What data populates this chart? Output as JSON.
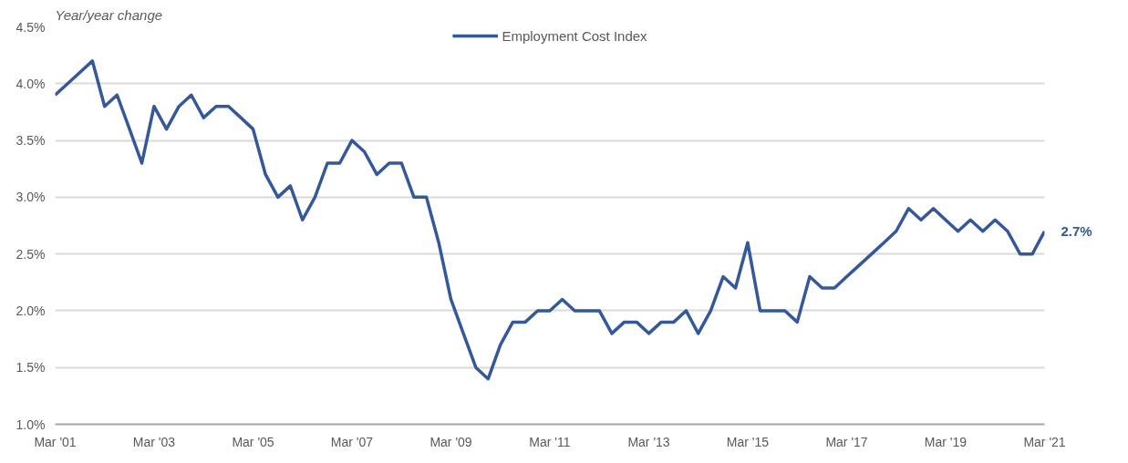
{
  "chart_data": {
    "type": "line",
    "ylabel": "Year/year change",
    "x": [
      "2001-03",
      "2001-06",
      "2001-09",
      "2001-12",
      "2002-03",
      "2002-06",
      "2002-09",
      "2002-12",
      "2003-03",
      "2003-06",
      "2003-09",
      "2003-12",
      "2004-03",
      "2004-06",
      "2004-09",
      "2004-12",
      "2005-03",
      "2005-06",
      "2005-09",
      "2005-12",
      "2006-03",
      "2006-06",
      "2006-09",
      "2006-12",
      "2007-03",
      "2007-06",
      "2007-09",
      "2007-12",
      "2008-03",
      "2008-06",
      "2008-09",
      "2008-12",
      "2009-03",
      "2009-06",
      "2009-09",
      "2009-12",
      "2010-03",
      "2010-06",
      "2010-09",
      "2010-12",
      "2011-03",
      "2011-06",
      "2011-09",
      "2011-12",
      "2012-03",
      "2012-06",
      "2012-09",
      "2012-12",
      "2013-03",
      "2013-06",
      "2013-09",
      "2013-12",
      "2014-03",
      "2014-06",
      "2014-09",
      "2014-12",
      "2015-03",
      "2015-06",
      "2015-09",
      "2015-12",
      "2016-03",
      "2016-06",
      "2016-09",
      "2016-12",
      "2017-03",
      "2017-06",
      "2017-09",
      "2017-12",
      "2018-03",
      "2018-06",
      "2018-09",
      "2018-12",
      "2019-03",
      "2019-06",
      "2019-09",
      "2019-12",
      "2020-03",
      "2020-06",
      "2020-09",
      "2020-12",
      "2021-03"
    ],
    "series": [
      {
        "name": "Employment Cost Index",
        "color": "#34589a",
        "values": [
          3.9,
          4.0,
          4.1,
          4.2,
          3.8,
          3.9,
          3.6,
          3.3,
          3.8,
          3.6,
          3.8,
          3.9,
          3.7,
          3.8,
          3.8,
          3.7,
          3.6,
          3.2,
          3.0,
          3.1,
          2.8,
          3.0,
          3.3,
          3.3,
          3.5,
          3.4,
          3.2,
          3.3,
          3.3,
          3.0,
          3.0,
          2.6,
          2.1,
          1.8,
          1.5,
          1.4,
          1.7,
          1.9,
          1.9,
          2.0,
          2.0,
          2.1,
          2.0,
          2.0,
          2.0,
          1.8,
          1.9,
          1.9,
          1.8,
          1.9,
          1.9,
          2.0,
          1.8,
          2.0,
          2.3,
          2.2,
          2.6,
          2.0,
          2.0,
          2.0,
          1.9,
          2.3,
          2.2,
          2.2,
          2.3,
          2.4,
          2.5,
          2.6,
          2.7,
          2.9,
          2.8,
          2.9,
          2.8,
          2.7,
          2.8,
          2.7,
          2.8,
          2.7,
          2.5,
          2.5,
          2.7
        ]
      }
    ],
    "xlim": [
      "2001-03",
      "2021-03"
    ],
    "xticks": [
      {
        "value": "2001-03",
        "label": "Mar '01"
      },
      {
        "value": "2003-03",
        "label": "Mar '03"
      },
      {
        "value": "2005-03",
        "label": "Mar '05"
      },
      {
        "value": "2007-03",
        "label": "Mar '07"
      },
      {
        "value": "2009-03",
        "label": "Mar '09"
      },
      {
        "value": "2011-03",
        "label": "Mar '11"
      },
      {
        "value": "2013-03",
        "label": "Mar '13"
      },
      {
        "value": "2015-03",
        "label": "Mar '15"
      },
      {
        "value": "2017-03",
        "label": "Mar '17"
      },
      {
        "value": "2019-03",
        "label": "Mar '19"
      },
      {
        "value": "2021-03",
        "label": "Mar '21"
      }
    ],
    "ylim": [
      1.0,
      4.5
    ],
    "yticks": [
      {
        "value": 1.0,
        "label": "1.0%"
      },
      {
        "value": 1.5,
        "label": "1.5%"
      },
      {
        "value": 2.0,
        "label": "2.0%"
      },
      {
        "value": 2.5,
        "label": "2.5%"
      },
      {
        "value": 3.0,
        "label": "3.0%"
      },
      {
        "value": 3.5,
        "label": "3.5%"
      },
      {
        "value": 4.0,
        "label": "4.0%"
      },
      {
        "value": 4.5,
        "label": "4.5%"
      }
    ],
    "annotations": [
      {
        "text": "2.7%",
        "x": "2021-03",
        "y": 2.7
      }
    ],
    "grid": "y",
    "legend": "top",
    "marker": "none",
    "line_style": "solid"
  }
}
